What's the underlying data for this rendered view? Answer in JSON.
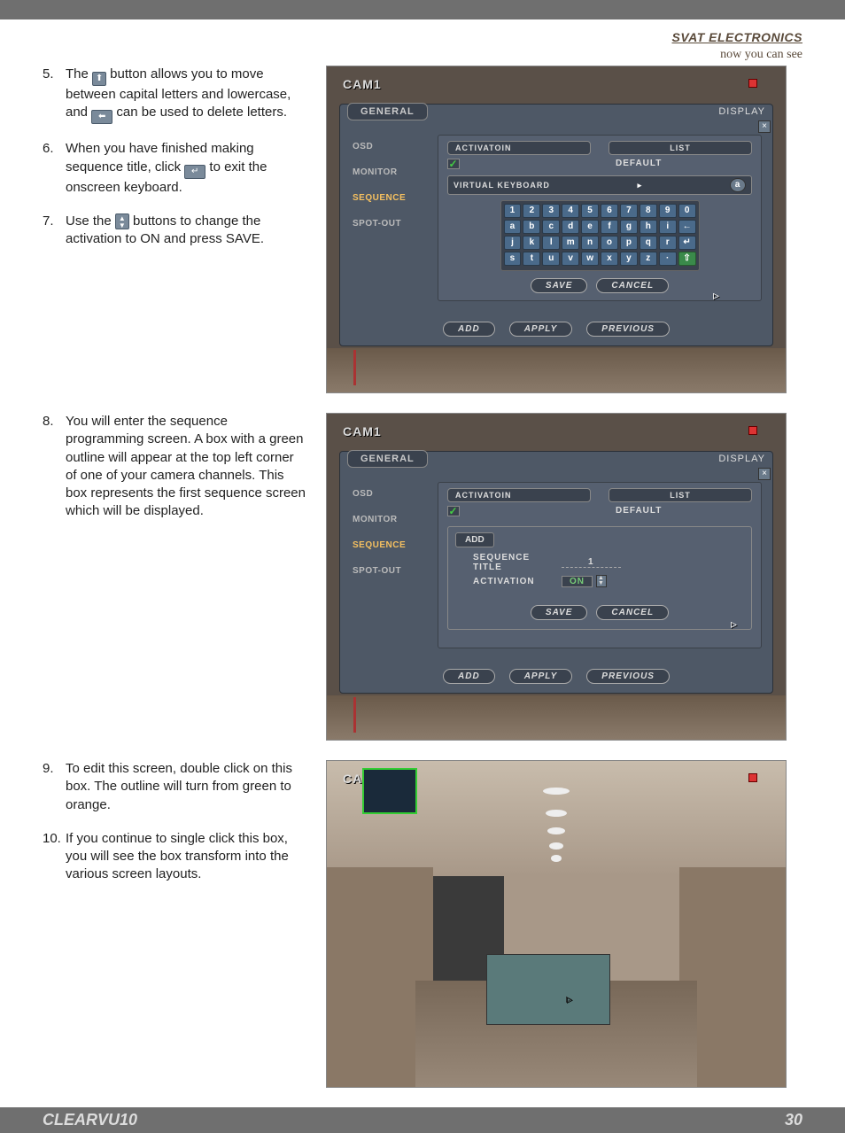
{
  "brand": {
    "name": "SVAT ELECTRONICS",
    "tagline": "now you can see"
  },
  "instructions": [
    {
      "num": "5.",
      "parts": [
        "The ",
        "ICON_UP",
        " button allows you to move between capital letters and lowercase, and ",
        "ICON_BACK",
        " can be used to delete letters."
      ]
    },
    {
      "num": "6.",
      "parts": [
        "When you have finished making sequence title, click ",
        "ICON_ENTER",
        " to exit the onscreen keyboard."
      ]
    },
    {
      "num": "7.",
      "parts": [
        "Use the ",
        "ICON_UPDOWN",
        " buttons to change the activation to ON and press SAVE."
      ]
    },
    {
      "num": "8.",
      "parts": [
        "You will enter the sequence programming screen.  A box with a green outline will appear at the top left corner of one of your camera channels.  This box represents the first sequence screen which will be displayed."
      ]
    },
    {
      "num": "9.",
      "parts": [
        "To edit this screen, double click on this box.  The outline will turn from green to orange."
      ]
    },
    {
      "num": "10.",
      "parts": [
        "If you continue to single click this box, you will see the box transform into the various screen layouts."
      ]
    }
  ],
  "shot": {
    "cam": "CAM1",
    "tab_general": "GENERAL",
    "tab_display": "DISPLAY",
    "menu": {
      "osd": "OSD",
      "monitor": "MONITOR",
      "sequence": "SEQUENCE",
      "spotout": "SPOT-OUT"
    },
    "activation": "ACTIVATOIN",
    "list": "LIST",
    "default": "DEFAULT",
    "vk_title": "VIRTUAL KEYBOARD",
    "vk_letter": "a",
    "keys_r1": [
      "1",
      "2",
      "3",
      "4",
      "5",
      "6",
      "7",
      "8",
      "9",
      "0"
    ],
    "keys_r2": [
      "a",
      "b",
      "c",
      "d",
      "e",
      "f",
      "g",
      "h",
      "i",
      "←"
    ],
    "keys_r3": [
      "j",
      "k",
      "l",
      "m",
      "n",
      "o",
      "p",
      "q",
      "r",
      "↵"
    ],
    "keys_r4": [
      "s",
      "t",
      "u",
      "v",
      "w",
      "x",
      "y",
      "z",
      "·",
      "⇧"
    ],
    "save": "SAVE",
    "cancel": "CANCEL",
    "add": "ADD",
    "apply": "APPLY",
    "previous": "PREVIOUS"
  },
  "shot2": {
    "add": "ADD",
    "seq_title_lbl": "SEQUENCE TITLE",
    "seq_title_val": "1",
    "activation_lbl": "ACTIVATION",
    "activation_val": "ON"
  },
  "shot3": {
    "cam": "CAM"
  },
  "footer": {
    "model": "CLEARVU10",
    "page": "30"
  }
}
